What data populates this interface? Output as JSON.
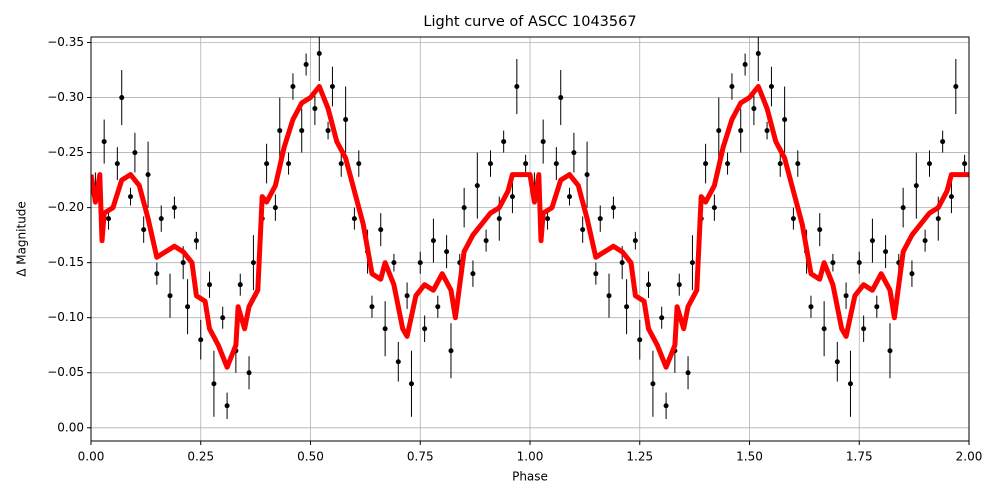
{
  "chart_data": {
    "type": "errorbar-line",
    "title": "Light curve of ASCC 1043567",
    "x_label": "Phase",
    "y_label": "Δ Magnitude",
    "xlim": [
      0,
      2
    ],
    "ylim": [
      0.012,
      -0.355
    ],
    "xticks": [
      {
        "value": 0,
        "label": "0.00"
      },
      {
        "value": 0.25,
        "label": "0.25"
      },
      {
        "value": 0.5,
        "label": "0.50"
      },
      {
        "value": 0.75,
        "label": "0.75"
      },
      {
        "value": 1,
        "label": "1.00"
      },
      {
        "value": 1.25,
        "label": "1.25"
      },
      {
        "value": 1.5,
        "label": "1.50"
      },
      {
        "value": 1.75,
        "label": "1.75"
      },
      {
        "value": 2,
        "label": "2.00"
      }
    ],
    "yticks": [
      {
        "value": 0,
        "label": "0.00"
      },
      {
        "value": -0.05,
        "label": "−0.05"
      },
      {
        "value": -0.1,
        "label": "−0.10"
      },
      {
        "value": -0.15,
        "label": "−0.15"
      },
      {
        "value": -0.2,
        "label": "−0.20"
      },
      {
        "value": -0.25,
        "label": "−0.25"
      },
      {
        "value": -0.3,
        "label": "−0.30"
      },
      {
        "value": -0.35,
        "label": "−0.35"
      }
    ],
    "grid": true,
    "points": {
      "color": "#000000",
      "x": [
        0.01,
        0.03,
        0.04,
        0.06,
        0.07,
        0.09,
        0.1,
        0.12,
        0.13,
        0.15,
        0.16,
        0.18,
        0.19,
        0.21,
        0.22,
        0.24,
        0.25,
        0.27,
        0.28,
        0.3,
        0.31,
        0.33,
        0.34,
        0.36,
        0.37,
        0.39,
        0.4,
        0.42,
        0.43,
        0.45,
        0.46,
        0.48,
        0.49,
        0.51,
        0.52,
        0.54,
        0.55,
        0.57,
        0.58,
        0.6,
        0.61,
        0.63,
        0.64,
        0.66,
        0.67,
        0.69,
        0.7,
        0.72,
        0.73,
        0.75,
        0.76,
        0.78,
        0.79,
        0.81,
        0.82,
        0.84,
        0.85,
        0.87,
        0.88,
        0.9,
        0.91,
        0.93,
        0.94,
        0.96,
        0.97,
        0.99,
        1.01,
        1.03,
        1.04,
        1.06,
        1.07,
        1.09,
        1.1,
        1.12,
        1.13,
        1.15,
        1.16,
        1.18,
        1.19,
        1.21,
        1.22,
        1.24,
        1.25,
        1.27,
        1.28,
        1.3,
        1.31,
        1.33,
        1.34,
        1.36,
        1.37,
        1.39,
        1.4,
        1.42,
        1.43,
        1.45,
        1.46,
        1.48,
        1.49,
        1.51,
        1.52,
        1.54,
        1.55,
        1.57,
        1.58,
        1.6,
        1.61,
        1.63,
        1.64,
        1.66,
        1.67,
        1.69,
        1.7,
        1.72,
        1.73,
        1.75,
        1.76,
        1.78,
        1.79,
        1.81,
        1.82,
        1.84,
        1.85,
        1.87,
        1.88,
        1.9,
        1.91,
        1.93,
        1.94,
        1.96,
        1.97,
        1.99
      ],
      "values": [
        -0.22,
        -0.26,
        -0.19,
        -0.24,
        -0.3,
        -0.21,
        -0.25,
        -0.18,
        -0.23,
        -0.14,
        -0.19,
        -0.12,
        -0.2,
        -0.15,
        -0.11,
        -0.17,
        -0.08,
        -0.13,
        -0.04,
        -0.1,
        -0.02,
        -0.07,
        -0.13,
        -0.05,
        -0.15,
        -0.19,
        -0.24,
        -0.2,
        -0.27,
        -0.24,
        -0.31,
        -0.27,
        -0.33,
        -0.29,
        -0.34,
        -0.27,
        -0.31,
        -0.24,
        -0.28,
        -0.19,
        -0.24,
        -0.16,
        -0.11,
        -0.18,
        -0.09,
        -0.15,
        -0.06,
        -0.12,
        -0.04,
        -0.15,
        -0.09,
        -0.17,
        -0.11,
        -0.16,
        -0.07,
        -0.15,
        -0.2,
        -0.14,
        -0.22,
        -0.17,
        -0.24,
        -0.19,
        -0.26,
        -0.21,
        -0.31,
        -0.24,
        -0.22,
        -0.26,
        -0.19,
        -0.24,
        -0.3,
        -0.21,
        -0.25,
        -0.18,
        -0.23,
        -0.14,
        -0.19,
        -0.12,
        -0.2,
        -0.15,
        -0.11,
        -0.17,
        -0.08,
        -0.13,
        -0.04,
        -0.1,
        -0.02,
        -0.07,
        -0.13,
        -0.05,
        -0.15,
        -0.19,
        -0.24,
        -0.2,
        -0.27,
        -0.24,
        -0.31,
        -0.27,
        -0.33,
        -0.29,
        -0.34,
        -0.27,
        -0.31,
        -0.24,
        -0.28,
        -0.19,
        -0.24,
        -0.16,
        -0.11,
        -0.18,
        -0.09,
        -0.15,
        -0.06,
        -0.12,
        -0.04,
        -0.15,
        -0.09,
        -0.17,
        -0.11,
        -0.16,
        -0.07,
        -0.15,
        -0.2,
        -0.14,
        -0.22,
        -0.17,
        -0.24,
        -0.19,
        -0.26,
        -0.21,
        -0.31,
        -0.24
      ],
      "errors": [
        0.012,
        0.02,
        0.01,
        0.015,
        0.025,
        0.008,
        0.018,
        0.012,
        0.03,
        0.01,
        0.012,
        0.02,
        0.01,
        0.015,
        0.025,
        0.008,
        0.018,
        0.012,
        0.03,
        0.01,
        0.012,
        0.02,
        0.01,
        0.015,
        0.025,
        0.008,
        0.018,
        0.012,
        0.03,
        0.01,
        0.012,
        0.02,
        0.01,
        0.015,
        0.025,
        0.008,
        0.018,
        0.012,
        0.03,
        0.01,
        0.012,
        0.02,
        0.01,
        0.015,
        0.025,
        0.008,
        0.018,
        0.012,
        0.03,
        0.01,
        0.012,
        0.02,
        0.01,
        0.015,
        0.025,
        0.008,
        0.018,
        0.012,
        0.03,
        0.01,
        0.012,
        0.02,
        0.01,
        0.015,
        0.025,
        0.008,
        0.012,
        0.02,
        0.01,
        0.015,
        0.025,
        0.008,
        0.018,
        0.012,
        0.03,
        0.01,
        0.012,
        0.02,
        0.01,
        0.015,
        0.025,
        0.008,
        0.018,
        0.012,
        0.03,
        0.01,
        0.012,
        0.02,
        0.01,
        0.015,
        0.025,
        0.008,
        0.018,
        0.012,
        0.03,
        0.01,
        0.012,
        0.02,
        0.01,
        0.015,
        0.025,
        0.008,
        0.018,
        0.012,
        0.03,
        0.01,
        0.012,
        0.02,
        0.01,
        0.015,
        0.025,
        0.008,
        0.018,
        0.012,
        0.03,
        0.01,
        0.012,
        0.02,
        0.01,
        0.015,
        0.025,
        0.008,
        0.018,
        0.012,
        0.03,
        0.01,
        0.012,
        0.02,
        0.01,
        0.015,
        0.025,
        0.008
      ]
    },
    "trend": {
      "color": "#ff0000",
      "x": [
        0,
        0.01,
        0.02,
        0.025,
        0.03,
        0.05,
        0.07,
        0.09,
        0.11,
        0.13,
        0.15,
        0.17,
        0.19,
        0.21,
        0.23,
        0.24,
        0.26,
        0.27,
        0.29,
        0.31,
        0.33,
        0.335,
        0.35,
        0.36,
        0.38,
        0.39,
        0.4,
        0.42,
        0.44,
        0.46,
        0.48,
        0.5,
        0.52,
        0.54,
        0.56,
        0.58,
        0.6,
        0.62,
        0.64,
        0.66,
        0.67,
        0.69,
        0.71,
        0.72,
        0.74,
        0.76,
        0.78,
        0.8,
        0.82,
        0.83,
        0.85,
        0.87,
        0.89,
        0.91,
        0.93,
        0.95,
        0.96,
        0.99,
        1,
        1.01,
        1.02,
        1.025,
        1.03,
        1.05,
        1.07,
        1.09,
        1.11,
        1.13,
        1.15,
        1.17,
        1.19,
        1.21,
        1.23,
        1.24,
        1.26,
        1.27,
        1.29,
        1.31,
        1.33,
        1.335,
        1.35,
        1.36,
        1.38,
        1.39,
        1.4,
        1.42,
        1.44,
        1.46,
        1.48,
        1.5,
        1.52,
        1.54,
        1.56,
        1.58,
        1.6,
        1.62,
        1.64,
        1.66,
        1.67,
        1.69,
        1.71,
        1.72,
        1.74,
        1.76,
        1.78,
        1.8,
        1.82,
        1.83,
        1.85,
        1.87,
        1.89,
        1.91,
        1.93,
        1.95,
        1.96,
        1.99,
        2
      ],
      "values": [
        -0.23,
        -0.205,
        -0.23,
        -0.17,
        -0.195,
        -0.2,
        -0.225,
        -0.23,
        -0.22,
        -0.19,
        -0.155,
        -0.16,
        -0.165,
        -0.16,
        -0.15,
        -0.12,
        -0.115,
        -0.09,
        -0.075,
        -0.055,
        -0.075,
        -0.11,
        -0.09,
        -0.11,
        -0.125,
        -0.21,
        -0.205,
        -0.22,
        -0.255,
        -0.28,
        -0.295,
        -0.3,
        -0.31,
        -0.29,
        -0.26,
        -0.245,
        -0.215,
        -0.185,
        -0.14,
        -0.135,
        -0.15,
        -0.13,
        -0.09,
        -0.083,
        -0.12,
        -0.13,
        -0.125,
        -0.14,
        -0.125,
        -0.1,
        -0.16,
        -0.175,
        -0.185,
        -0.195,
        -0.2,
        -0.215,
        -0.23,
        -0.23,
        -0.23,
        -0.205,
        -0.23,
        -0.17,
        -0.195,
        -0.2,
        -0.225,
        -0.23,
        -0.22,
        -0.19,
        -0.155,
        -0.16,
        -0.165,
        -0.16,
        -0.15,
        -0.12,
        -0.115,
        -0.09,
        -0.075,
        -0.055,
        -0.075,
        -0.11,
        -0.09,
        -0.11,
        -0.125,
        -0.21,
        -0.205,
        -0.22,
        -0.255,
        -0.28,
        -0.295,
        -0.3,
        -0.31,
        -0.29,
        -0.26,
        -0.245,
        -0.215,
        -0.185,
        -0.14,
        -0.135,
        -0.15,
        -0.13,
        -0.09,
        -0.083,
        -0.12,
        -0.13,
        -0.125,
        -0.14,
        -0.125,
        -0.1,
        -0.16,
        -0.175,
        -0.185,
        -0.195,
        -0.2,
        -0.215,
        -0.23,
        -0.23,
        -0.23
      ]
    }
  }
}
